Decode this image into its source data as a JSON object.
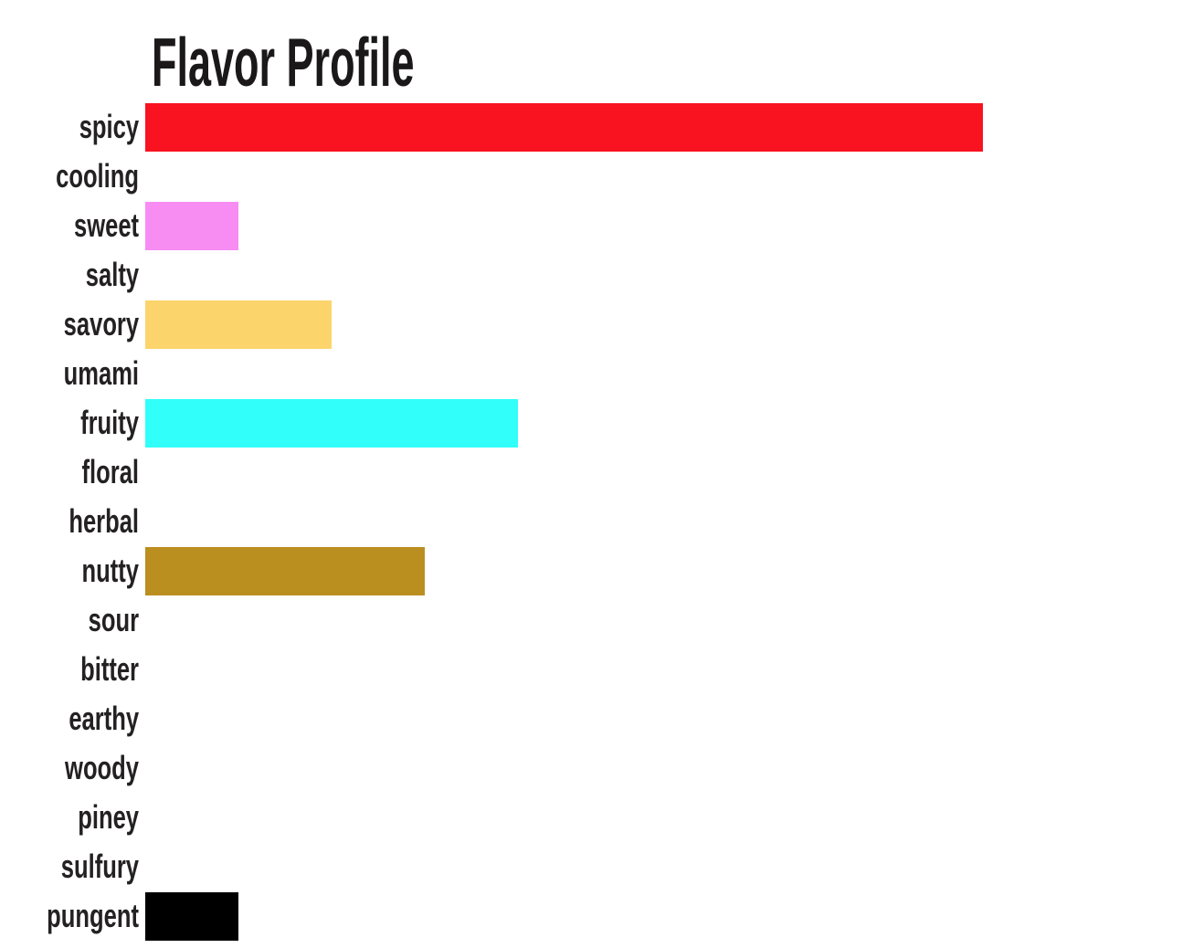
{
  "page": {
    "background_color": "#ffffff"
  },
  "chart_data": {
    "type": "bar",
    "orientation": "horizontal",
    "title": "Flavor Profile",
    "xlabel": "",
    "ylabel": "",
    "categories": [
      "spicy",
      "cooling",
      "sweet",
      "salty",
      "savory",
      "umami",
      "fruity",
      "floral",
      "herbal",
      "nutty",
      "sour",
      "bitter",
      "earthy",
      "woody",
      "piney",
      "sulfury",
      "pungent"
    ],
    "values": [
      9,
      0,
      1,
      0,
      2,
      0,
      4,
      0,
      0,
      3,
      0,
      0,
      0,
      0,
      0,
      0,
      1
    ],
    "bar_colors": [
      "#F9121F",
      null,
      "#F78CF2",
      null,
      "#FCD46C",
      null,
      "#30FFFA",
      null,
      null,
      "#BB8E20",
      null,
      null,
      null,
      null,
      null,
      null,
      "#000000"
    ],
    "xlim": [
      0,
      9
    ],
    "grid": false,
    "legend": false,
    "axes_visible": false,
    "title_color": "#1b1819",
    "label_color": "#242122"
  }
}
